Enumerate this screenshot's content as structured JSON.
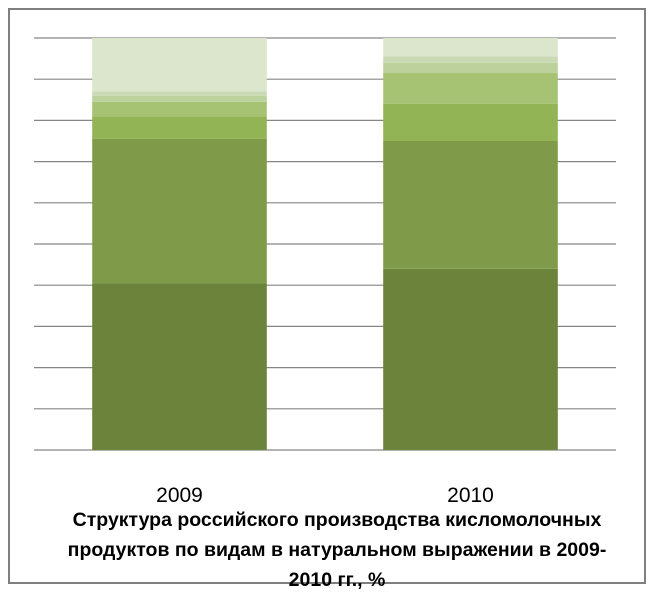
{
  "chart_data": {
    "type": "bar",
    "stacked": true,
    "title": "Структура российского производства кисломолочных продуктов по видам в натуральном выражении в 2009-2010 гг., %",
    "categories": [
      "2009",
      "2010"
    ],
    "ylim": [
      0,
      100
    ],
    "grid": true,
    "legend": "none",
    "series": [
      {
        "values": [
          40.5,
          44.0
        ],
        "color": "#6b833b"
      },
      {
        "values": [
          35.0,
          31.0
        ],
        "color": "#7f9b49"
      },
      {
        "values": [
          5.5,
          9.0
        ],
        "color": "#93b454"
      },
      {
        "values": [
          3.5,
          7.5
        ],
        "color": "#a6c374"
      },
      {
        "values": [
          1.5,
          2.5
        ],
        "color": "#bcd19b"
      },
      {
        "values": [
          1.0,
          1.5
        ],
        "color": "#cbdab5"
      },
      {
        "values": [
          13.0,
          4.5
        ],
        "color": "#dce6cc"
      }
    ]
  }
}
